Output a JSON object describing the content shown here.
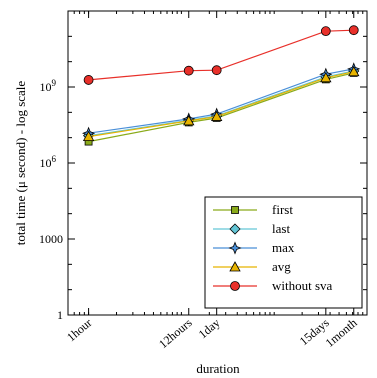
{
  "chart_data": {
    "type": "line",
    "xlabel": "duration",
    "ylabel": "total time (μ second) - log scale",
    "x_scale": "log",
    "y_scale": "log",
    "x_unit": "hours",
    "xlim_hours": [
      0.6,
      1000
    ],
    "ylim": [
      1,
      1000000000000
    ],
    "x_ticks": [
      {
        "value": 1,
        "label": "1hour"
      },
      {
        "value": 12,
        "label": "12hours"
      },
      {
        "value": 24,
        "label": "1day"
      },
      {
        "value": 360,
        "label": "15days"
      },
      {
        "value": 720,
        "label": "1month"
      }
    ],
    "y_ticks": [
      {
        "value": 1,
        "label": "1"
      },
      {
        "value": 1000,
        "label": "1000"
      },
      {
        "value": 1000000,
        "label": "10^6"
      },
      {
        "value": 1000000000,
        "label": "10^9"
      }
    ],
    "x": [
      1,
      12,
      24,
      360,
      720
    ],
    "legend_position": "bottom-right",
    "series": [
      {
        "name": "first",
        "color": "#8aaa1a",
        "marker": "square",
        "values": [
          7000000,
          40000000,
          60000000,
          2000000000,
          3600000000
        ]
      },
      {
        "name": "last",
        "color": "#63c6d6",
        "marker": "diamond",
        "values": [
          12000000,
          48000000,
          72000000,
          2500000000,
          4300000000
        ]
      },
      {
        "name": "max",
        "color": "#4a8fd8",
        "marker": "star",
        "values": [
          15000000,
          55000000,
          85000000,
          3200000000,
          5200000000
        ]
      },
      {
        "name": "avg",
        "color": "#e8b400",
        "marker": "triangle",
        "values": [
          11000000,
          46000000,
          68000000,
          2300000000,
          4000000000
        ]
      },
      {
        "name": "without sva",
        "color": "#e8302a",
        "marker": "circle",
        "values": [
          1900000000,
          4400000000,
          4600000000,
          160000000000,
          175000000000
        ]
      }
    ]
  }
}
